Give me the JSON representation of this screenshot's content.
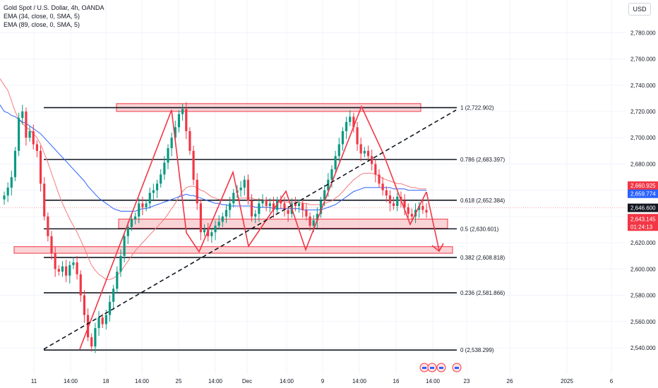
{
  "header": {
    "symbol": "Gold Spot / U.S. Dollar, 4h, OANDA",
    "ema1": "EMA (34, close, 0, SMA, 5)",
    "ema2": "EMA (89, close, 0, SMA, 5)",
    "currency": "USD"
  },
  "chart_data": {
    "type": "candlestick",
    "ylim": [
      2528,
      2800
    ],
    "y_ticks": [
      2540,
      2560,
      2580,
      2600,
      2620,
      2640,
      2660,
      2680,
      2700,
      2720,
      2740,
      2760,
      2780
    ],
    "y_tick_labels": [
      "2,540.000",
      "2,560.000",
      "2,580.000",
      "2,600.000",
      "2,620.000",
      "2,640.000",
      "2,660.000",
      "2,680.000",
      "2,700.000",
      "2,720.000",
      "2,740.000",
      "2,760.000",
      "2,780.000"
    ],
    "x_labels": [
      "11",
      "14:00",
      "18",
      "14:00",
      "25",
      "14:00",
      "Dec",
      "14:00",
      "9",
      "14:00",
      "16",
      "14:00",
      "23",
      "26",
      "2025",
      "6"
    ],
    "closes": [
      2656,
      2662,
      2670,
      2690,
      2715,
      2720,
      2700,
      2705,
      2695,
      2690,
      2665,
      2640,
      2625,
      2612,
      2600,
      2598,
      2602,
      2595,
      2603,
      2605,
      2596,
      2580,
      2565,
      2548,
      2541,
      2555,
      2563,
      2558,
      2565,
      2575,
      2585,
      2598,
      2610,
      2625,
      2632,
      2638,
      2640,
      2650,
      2647,
      2650,
      2658,
      2660,
      2665,
      2672,
      2681,
      2692,
      2700,
      2708,
      2718,
      2722,
      2705,
      2690,
      2668,
      2650,
      2628,
      2630,
      2625,
      2628,
      2633,
      2636,
      2640,
      2645,
      2650,
      2658,
      2660,
      2662,
      2668,
      2652,
      2640,
      2642,
      2650,
      2652,
      2648,
      2650,
      2645,
      2652,
      2650,
      2645,
      2642,
      2650,
      2648,
      2650,
      2645,
      2640,
      2633,
      2637,
      2642,
      2652,
      2660,
      2668,
      2676,
      2686,
      2695,
      2705,
      2712,
      2716,
      2708,
      2695,
      2688,
      2690,
      2686,
      2680,
      2672,
      2665,
      2660,
      2656,
      2650,
      2648,
      2655,
      2652,
      2647,
      2642,
      2640,
      2645,
      2648,
      2645,
      2643
    ],
    "ema34": [
      2740,
      2736,
      2728,
      2720,
      2714,
      2711,
      2708,
      2706,
      2703,
      2700,
      2695,
      2688,
      2681,
      2673,
      2665,
      2657,
      2650,
      2644,
      2638,
      2633,
      2628,
      2622,
      2616,
      2609,
      2603,
      2599,
      2596,
      2594,
      2592,
      2592,
      2593,
      2595,
      2598,
      2602,
      2606,
      2610,
      2614,
      2617,
      2620,
      2623,
      2626,
      2629,
      2632,
      2635,
      2638,
      2642,
      2646,
      2650,
      2655,
      2659,
      2662,
      2663,
      2663,
      2662,
      2660,
      2659,
      2657,
      2655,
      2654,
      2653,
      2653,
      2653,
      2653,
      2653,
      2653,
      2654,
      2654,
      2654,
      2654,
      2653,
      2653,
      2653,
      2652,
      2652,
      2652,
      2652,
      2652,
      2651,
      2651,
      2651,
      2651,
      2651,
      2650,
      2650,
      2649,
      2649,
      2649,
      2649,
      2650,
      2651,
      2652,
      2654,
      2656,
      2659,
      2662,
      2665,
      2668,
      2670,
      2672,
      2673,
      2673,
      2673,
      2672,
      2671,
      2669,
      2668,
      2667,
      2666,
      2665,
      2665,
      2664,
      2663,
      2662,
      2662,
      2661,
      2661,
      2661
    ],
    "ema89": [
      2720,
      2719,
      2717,
      2716,
      2714,
      2712,
      2711,
      2709,
      2707,
      2705,
      2703,
      2700,
      2697,
      2694,
      2691,
      2688,
      2685,
      2682,
      2679,
      2676,
      2673,
      2670,
      2667,
      2663,
      2660,
      2657,
      2654,
      2652,
      2650,
      2648,
      2646,
      2645,
      2644,
      2644,
      2644,
      2644,
      2644,
      2645,
      2646,
      2646,
      2647,
      2648,
      2649,
      2650,
      2651,
      2652,
      2653,
      2654,
      2655,
      2656,
      2657,
      2656,
      2656,
      2655,
      2654,
      2653,
      2652,
      2651,
      2650,
      2650,
      2649,
      2649,
      2648,
      2648,
      2648,
      2648,
      2648,
      2648,
      2648,
      2647,
      2647,
      2647,
      2647,
      2647,
      2646,
      2646,
      2646,
      2646,
      2646,
      2646,
      2646,
      2646,
      2645,
      2645,
      2645,
      2645,
      2645,
      2645,
      2646,
      2647,
      2648,
      2649,
      2651,
      2653,
      2655,
      2657,
      2659,
      2660,
      2661,
      2662,
      2662,
      2662,
      2662,
      2662,
      2662,
      2662,
      2662,
      2661,
      2661,
      2661,
      2661,
      2660,
      2660,
      2660,
      2660,
      2660,
      2660
    ],
    "fib_levels": [
      {
        "ratio": "1",
        "value": 2722.902,
        "label": "1 (2,722.902)"
      },
      {
        "ratio": "0.786",
        "value": 2683.397,
        "label": "0.786 (2,683.397)"
      },
      {
        "ratio": "0.618",
        "value": 2652.384,
        "label": "0.618 (2,652.384)"
      },
      {
        "ratio": "0.5",
        "value": 2630.601,
        "label": "0.5 (2,630.601)"
      },
      {
        "ratio": "0.382",
        "value": 2608.818,
        "label": "0.382 (2,608.818)"
      },
      {
        "ratio": "0.236",
        "value": 2581.866,
        "label": "0.236 (2,581.866)"
      },
      {
        "ratio": "0",
        "value": 2538.299,
        "label": "0 (2,538.299)"
      }
    ],
    "zones": [
      {
        "name": "top-zone",
        "y_top": 2726,
        "y_bottom": 2720
      },
      {
        "name": "mid-zone",
        "y_top": 2638,
        "y_bottom": 2631
      },
      {
        "name": "low-zone",
        "y_top": 2617,
        "y_bottom": 2612
      }
    ],
    "price_tags": {
      "ema34_value": "2,660.925",
      "ema89_value": "2,659.774",
      "last_value": "2,646.600",
      "current_value": "2,643.145",
      "countdown": "01:24:13"
    },
    "colors": {
      "up": "#089981",
      "down": "#f23645",
      "ema34": "#f47c7c",
      "ema89": "#2962ff",
      "zone_fill": "#f7c5c8",
      "zone_stroke": "#f23645",
      "projection": "#f23645"
    }
  }
}
